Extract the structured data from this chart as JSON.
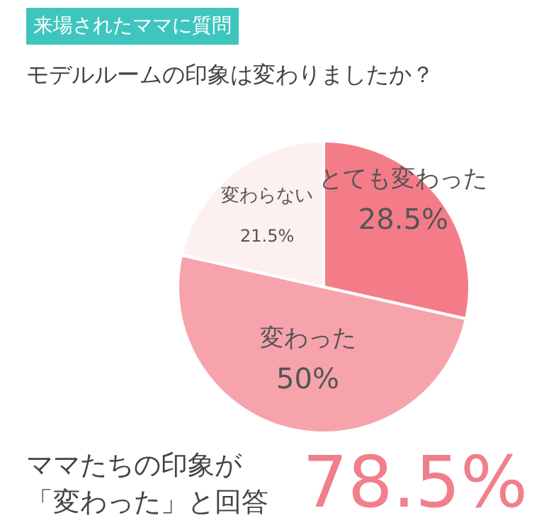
{
  "chart_data": {
    "type": "pie",
    "title": "来場されたママに質問",
    "subtitle": "モデルルームの印象は変わりましたか？",
    "categories": [
      "とても変わった",
      "変わった",
      "変わらない"
    ],
    "values": [
      28.5,
      50,
      21.5
    ],
    "colors": [
      "#f47c88",
      "#f6a3ab",
      "#fdf0f0"
    ],
    "value_labels": [
      "28.5%",
      "50%",
      "21.5%"
    ],
    "annotations": [
      "ママたちの印象が",
      "「変わった」と回答",
      "78.5%"
    ]
  }
}
